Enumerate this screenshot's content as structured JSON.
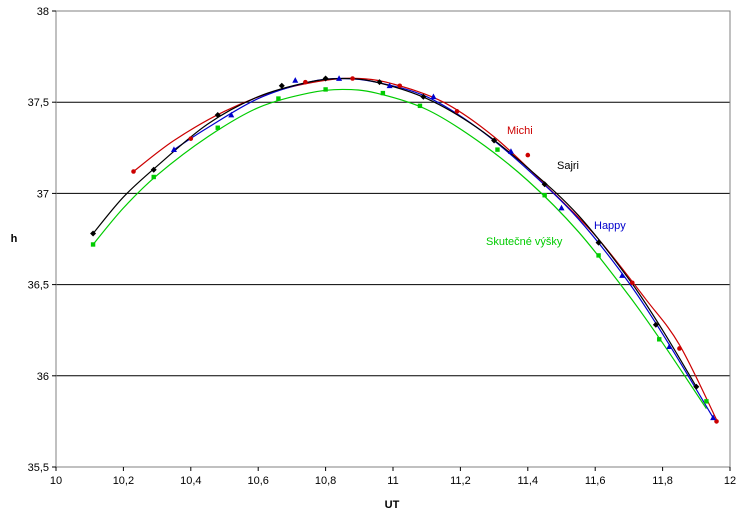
{
  "chart_data": {
    "type": "scatter",
    "title": "",
    "xlabel": "UT",
    "ylabel": "h",
    "xlim": [
      10,
      12
    ],
    "ylim": [
      35.5,
      38
    ],
    "x_ticks": [
      "10",
      "10,2",
      "10,4",
      "10,6",
      "10,8",
      "11",
      "11,2",
      "11,4",
      "11,6",
      "11,8",
      "12"
    ],
    "y_ticks": [
      "35,5",
      "36",
      "36,5",
      "37",
      "37,5",
      "38"
    ],
    "grid": "horizontal major gridlines",
    "legend": "none (series labels placed inside plot)",
    "series": [
      {
        "name": "Michi",
        "color": "#cc0000",
        "marker": "circle",
        "points": [
          [
            10.23,
            37.12
          ],
          [
            10.4,
            37.3
          ],
          [
            10.74,
            37.61
          ],
          [
            10.88,
            37.63
          ],
          [
            11.02,
            37.59
          ],
          [
            11.19,
            37.45
          ],
          [
            11.4,
            37.21
          ],
          [
            11.71,
            36.51
          ],
          [
            11.85,
            36.15
          ],
          [
            11.96,
            35.75
          ]
        ],
        "fit": [
          [
            10.23,
            37.12
          ],
          [
            10.35,
            37.29
          ],
          [
            10.5,
            37.45
          ],
          [
            10.65,
            37.56
          ],
          [
            10.8,
            37.62
          ],
          [
            10.9,
            37.63
          ],
          [
            11.0,
            37.6
          ],
          [
            11.15,
            37.5
          ],
          [
            11.3,
            37.31
          ],
          [
            11.45,
            37.05
          ],
          [
            11.6,
            36.77
          ],
          [
            11.75,
            36.42
          ],
          [
            11.85,
            36.17
          ],
          [
            11.96,
            35.76
          ]
        ]
      },
      {
        "name": "Sajri",
        "color": "#000000",
        "marker": "diamond",
        "points": [
          [
            10.11,
            36.78
          ],
          [
            10.29,
            37.13
          ],
          [
            10.48,
            37.43
          ],
          [
            10.67,
            37.59
          ],
          [
            10.8,
            37.63
          ],
          [
            10.96,
            37.61
          ],
          [
            11.09,
            37.53
          ],
          [
            11.3,
            37.29
          ],
          [
            11.45,
            37.05
          ],
          [
            11.61,
            36.73
          ],
          [
            11.78,
            36.28
          ],
          [
            11.9,
            35.94
          ]
        ],
        "fit": [
          [
            10.11,
            36.78
          ],
          [
            10.2,
            36.98
          ],
          [
            10.3,
            37.15
          ],
          [
            10.45,
            37.38
          ],
          [
            10.6,
            37.53
          ],
          [
            10.75,
            37.61
          ],
          [
            10.85,
            37.63
          ],
          [
            10.95,
            37.61
          ],
          [
            11.1,
            37.52
          ],
          [
            11.25,
            37.36
          ],
          [
            11.4,
            37.14
          ],
          [
            11.55,
            36.88
          ],
          [
            11.7,
            36.53
          ],
          [
            11.8,
            36.25
          ],
          [
            11.9,
            35.94
          ]
        ]
      },
      {
        "name": "Happy",
        "color": "#0000cc",
        "marker": "triangle",
        "points": [
          [
            10.35,
            37.24
          ],
          [
            10.52,
            37.43
          ],
          [
            10.71,
            37.62
          ],
          [
            10.84,
            37.63
          ],
          [
            10.99,
            37.59
          ],
          [
            11.12,
            37.53
          ],
          [
            11.35,
            37.23
          ],
          [
            11.5,
            36.92
          ],
          [
            11.68,
            36.55
          ],
          [
            11.82,
            36.16
          ],
          [
            11.95,
            35.77
          ]
        ],
        "fit": [
          [
            10.35,
            37.24
          ],
          [
            10.45,
            37.36
          ],
          [
            10.6,
            37.52
          ],
          [
            10.75,
            37.61
          ],
          [
            10.85,
            37.63
          ],
          [
            10.95,
            37.61
          ],
          [
            11.1,
            37.53
          ],
          [
            11.25,
            37.36
          ],
          [
            11.4,
            37.13
          ],
          [
            11.55,
            36.86
          ],
          [
            11.7,
            36.51
          ],
          [
            11.82,
            36.17
          ],
          [
            11.95,
            35.77
          ]
        ]
      },
      {
        "name": "Skutečné výšky",
        "color": "#00cc00",
        "marker": "square",
        "points": [
          [
            10.11,
            36.72
          ],
          [
            10.29,
            37.09
          ],
          [
            10.48,
            37.36
          ],
          [
            10.66,
            37.52
          ],
          [
            10.8,
            37.57
          ],
          [
            10.97,
            37.55
          ],
          [
            11.08,
            37.48
          ],
          [
            11.31,
            37.24
          ],
          [
            11.45,
            36.99
          ],
          [
            11.61,
            36.66
          ],
          [
            11.79,
            36.2
          ],
          [
            11.93,
            35.86
          ]
        ],
        "fit": [
          [
            10.11,
            36.72
          ],
          [
            10.2,
            36.92
          ],
          [
            10.3,
            37.1
          ],
          [
            10.45,
            37.31
          ],
          [
            10.6,
            37.47
          ],
          [
            10.75,
            37.55
          ],
          [
            10.85,
            37.57
          ],
          [
            10.95,
            37.55
          ],
          [
            11.1,
            37.46
          ],
          [
            11.25,
            37.29
          ],
          [
            11.4,
            37.07
          ],
          [
            11.55,
            36.79
          ],
          [
            11.7,
            36.44
          ],
          [
            11.8,
            36.18
          ],
          [
            11.93,
            35.82
          ]
        ]
      }
    ],
    "series_label_positions": [
      "right of curve, upper",
      "right of curve",
      "right of curve",
      "inside plot, lower"
    ]
  }
}
